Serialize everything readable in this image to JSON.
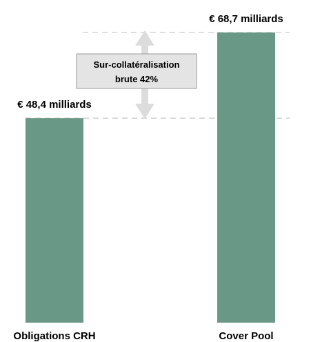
{
  "chart_data": {
    "type": "bar",
    "categories": [
      "Obligations CRH",
      "Cover Pool"
    ],
    "values": [
      48.4,
      68.7
    ],
    "value_labels": [
      "€ 48,4 milliards",
      "€ 68,7 milliards"
    ],
    "annotation": {
      "line1": "Sur-collatéralisation",
      "line2": "brute 42%"
    },
    "ylim": [
      0,
      68.7
    ],
    "colors": {
      "bar": "#6a9886",
      "reference_line": "#d4d4d4",
      "arrow": "#dcdcdc",
      "annotation_box_fill": "#e4e4e4",
      "annotation_box_stroke": "#9a9a9a"
    },
    "grid": false,
    "legend": "none"
  }
}
